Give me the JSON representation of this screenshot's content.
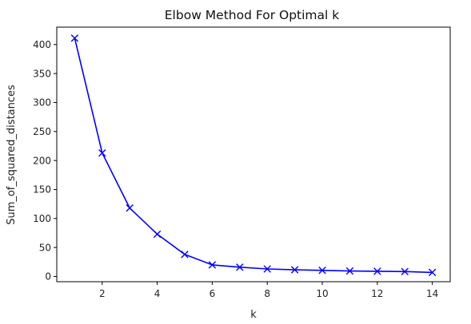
{
  "chart_data": {
    "type": "line",
    "title": "Elbow Method For Optimal k",
    "xlabel": "k",
    "ylabel": "Sum_of_squared_distances",
    "x": [
      1,
      2,
      3,
      4,
      5,
      6,
      7,
      8,
      9,
      10,
      11,
      12,
      13,
      14
    ],
    "series": [
      {
        "values": [
          411,
          213,
          118,
          73,
          38,
          20,
          16,
          13,
          11.5,
          10.5,
          9.5,
          9,
          8.5,
          7
        ]
      }
    ],
    "marker": "x",
    "line_color": "#0000ff",
    "xlim": [
      0.35,
      14.65
    ],
    "ylim": [
      -9,
      430
    ],
    "xticks": [
      2,
      4,
      6,
      8,
      10,
      12,
      14
    ],
    "yticks": [
      0,
      50,
      100,
      150,
      200,
      250,
      300,
      350,
      400
    ],
    "grid": false
  }
}
